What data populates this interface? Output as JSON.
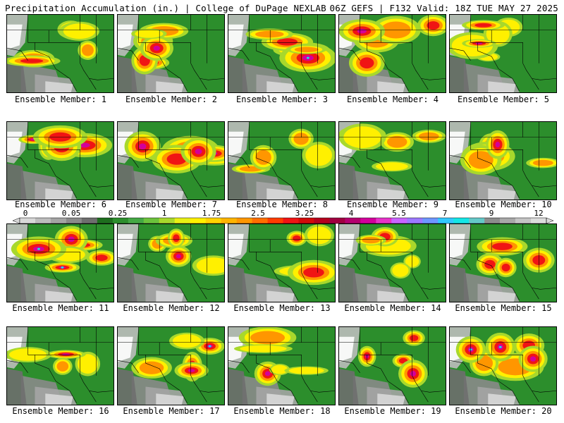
{
  "header": {
    "left": "Precipitation Accumulation (in.) | College of DuPage NEXLAB",
    "right": "06Z GEFS | F132 Valid: 18Z TUE MAY 27 2025"
  },
  "members": [
    {
      "label": "Ensemble Member: 1"
    },
    {
      "label": "Ensemble Member: 2"
    },
    {
      "label": "Ensemble Member: 3"
    },
    {
      "label": "Ensemble Member: 4"
    },
    {
      "label": "Ensemble Member: 5"
    },
    {
      "label": "Ensemble Member: 6"
    },
    {
      "label": "Ensemble Member: 7"
    },
    {
      "label": "Ensemble Member: 8"
    },
    {
      "label": "Ensemble Member: 9"
    },
    {
      "label": "Ensemble Member: 10"
    },
    {
      "label": "Ensemble Member: 11"
    },
    {
      "label": "Ensemble Member: 12"
    },
    {
      "label": "Ensemble Member: 13"
    },
    {
      "label": "Ensemble Member: 14"
    },
    {
      "label": "Ensemble Member: 15"
    },
    {
      "label": "Ensemble Member: 16"
    },
    {
      "label": "Ensemble Member: 17"
    },
    {
      "label": "Ensemble Member: 18"
    },
    {
      "label": "Ensemble Member: 19"
    },
    {
      "label": "Ensemble Member: 20"
    }
  ],
  "legend": {
    "tick_labels": [
      "0",
      "0.05",
      "0.25",
      "1",
      "1.75",
      "2.5",
      "3.25",
      "4",
      "5.5",
      "7",
      "9",
      "12"
    ],
    "colors": [
      "#d8d8d8",
      "#bdbdbd",
      "#a4a4a4",
      "#8a8a8a",
      "#6e6e6e",
      "#1e6e1e",
      "#2c8e2c",
      "#44a844",
      "#6cc23c",
      "#a8d82c",
      "#e8f014",
      "#fff000",
      "#ffd200",
      "#ffb400",
      "#ff9600",
      "#ff6e00",
      "#ff3c00",
      "#f01414",
      "#d20a0a",
      "#b4001e",
      "#a00040",
      "#b4006e",
      "#d2009b",
      "#e632c8",
      "#c864ff",
      "#9c78ff",
      "#6e96ff",
      "#32c8ff",
      "#14e6e6",
      "#64c8c8",
      "#8c8c8c",
      "#a8a8a8",
      "#c4c4c4",
      "#dcdcdc"
    ]
  }
}
